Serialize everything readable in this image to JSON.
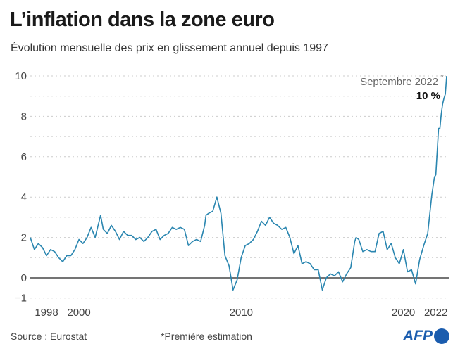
{
  "chart_data": {
    "type": "line",
    "title": "L’inflation dans la zone euro",
    "subtitle": "Évolution mensuelle des prix en glissement annuel depuis 1997",
    "xlabel": "",
    "ylabel": "",
    "ylim": [
      -1,
      10
    ],
    "xlim": [
      "1997-01",
      "2022-09"
    ],
    "yticks": [
      "−1",
      "0",
      "2",
      "4",
      "6",
      "8",
      "10"
    ],
    "xticks": [
      "1998",
      "2000",
      "2010",
      "2020",
      "2022"
    ],
    "grid": true,
    "line_color": "#2a86b0",
    "annotation": {
      "label": "Septembre 2022",
      "marker": "*",
      "value": "10 %"
    },
    "points": [
      [
        "1997-01",
        2.0
      ],
      [
        "1997-04",
        1.4
      ],
      [
        "1997-07",
        1.7
      ],
      [
        "1997-10",
        1.5
      ],
      [
        "1998-01",
        1.1
      ],
      [
        "1998-04",
        1.4
      ],
      [
        "1998-07",
        1.3
      ],
      [
        "1998-10",
        1.0
      ],
      [
        "1999-01",
        0.8
      ],
      [
        "1999-04",
        1.1
      ],
      [
        "1999-07",
        1.1
      ],
      [
        "1999-10",
        1.4
      ],
      [
        "2000-01",
        1.9
      ],
      [
        "2000-04",
        1.7
      ],
      [
        "2000-07",
        2.0
      ],
      [
        "2000-10",
        2.5
      ],
      [
        "2001-01",
        2.0
      ],
      [
        "2001-05",
        3.1
      ],
      [
        "2001-07",
        2.4
      ],
      [
        "2001-10",
        2.2
      ],
      [
        "2002-01",
        2.6
      ],
      [
        "2002-04",
        2.3
      ],
      [
        "2002-07",
        1.9
      ],
      [
        "2002-10",
        2.3
      ],
      [
        "2003-01",
        2.1
      ],
      [
        "2003-04",
        2.1
      ],
      [
        "2003-07",
        1.9
      ],
      [
        "2003-10",
        2.0
      ],
      [
        "2004-01",
        1.8
      ],
      [
        "2004-04",
        2.0
      ],
      [
        "2004-07",
        2.3
      ],
      [
        "2004-10",
        2.4
      ],
      [
        "2005-01",
        1.9
      ],
      [
        "2005-04",
        2.1
      ],
      [
        "2005-07",
        2.2
      ],
      [
        "2005-10",
        2.5
      ],
      [
        "2006-01",
        2.4
      ],
      [
        "2006-04",
        2.5
      ],
      [
        "2006-07",
        2.4
      ],
      [
        "2006-10",
        1.6
      ],
      [
        "2007-01",
        1.8
      ],
      [
        "2007-04",
        1.9
      ],
      [
        "2007-07",
        1.8
      ],
      [
        "2007-10",
        2.6
      ],
      [
        "2007-11",
        3.1
      ],
      [
        "2008-01",
        3.2
      ],
      [
        "2008-04",
        3.3
      ],
      [
        "2008-07",
        4.0
      ],
      [
        "2008-10",
        3.2
      ],
      [
        "2009-01",
        1.1
      ],
      [
        "2009-04",
        0.6
      ],
      [
        "2009-07",
        -0.6
      ],
      [
        "2009-10",
        -0.1
      ],
      [
        "2010-01",
        1.0
      ],
      [
        "2010-04",
        1.6
      ],
      [
        "2010-07",
        1.7
      ],
      [
        "2010-10",
        1.9
      ],
      [
        "2011-01",
        2.3
      ],
      [
        "2011-04",
        2.8
      ],
      [
        "2011-07",
        2.6
      ],
      [
        "2011-10",
        3.0
      ],
      [
        "2012-01",
        2.7
      ],
      [
        "2012-04",
        2.6
      ],
      [
        "2012-07",
        2.4
      ],
      [
        "2012-10",
        2.5
      ],
      [
        "2013-01",
        2.0
      ],
      [
        "2013-04",
        1.2
      ],
      [
        "2013-07",
        1.6
      ],
      [
        "2013-10",
        0.7
      ],
      [
        "2014-01",
        0.8
      ],
      [
        "2014-04",
        0.7
      ],
      [
        "2014-07",
        0.4
      ],
      [
        "2014-10",
        0.4
      ],
      [
        "2015-01",
        -0.6
      ],
      [
        "2015-04",
        0.0
      ],
      [
        "2015-07",
        0.2
      ],
      [
        "2015-10",
        0.1
      ],
      [
        "2016-01",
        0.3
      ],
      [
        "2016-04",
        -0.2
      ],
      [
        "2016-07",
        0.2
      ],
      [
        "2016-10",
        0.5
      ],
      [
        "2017-01",
        1.8
      ],
      [
        "2017-02",
        2.0
      ],
      [
        "2017-04",
        1.9
      ],
      [
        "2017-07",
        1.3
      ],
      [
        "2017-10",
        1.4
      ],
      [
        "2018-01",
        1.3
      ],
      [
        "2018-04",
        1.3
      ],
      [
        "2018-07",
        2.2
      ],
      [
        "2018-10",
        2.3
      ],
      [
        "2019-01",
        1.4
      ],
      [
        "2019-04",
        1.7
      ],
      [
        "2019-07",
        1.0
      ],
      [
        "2019-10",
        0.7
      ],
      [
        "2020-01",
        1.4
      ],
      [
        "2020-04",
        0.3
      ],
      [
        "2020-07",
        0.4
      ],
      [
        "2020-10",
        -0.3
      ],
      [
        "2021-01",
        0.9
      ],
      [
        "2021-04",
        1.6
      ],
      [
        "2021-07",
        2.2
      ],
      [
        "2021-10",
        4.1
      ],
      [
        "2021-12",
        5.0
      ],
      [
        "2022-01",
        5.1
      ],
      [
        "2022-03",
        7.4
      ],
      [
        "2022-04",
        7.4
      ],
      [
        "2022-05",
        8.1
      ],
      [
        "2022-06",
        8.6
      ],
      [
        "2022-07",
        8.9
      ],
      [
        "2022-08",
        9.1
      ],
      [
        "2022-09",
        10.0
      ]
    ]
  },
  "footer": {
    "source": "Source : Eurostat",
    "note": "*Première estimation",
    "logo": "AFP"
  }
}
